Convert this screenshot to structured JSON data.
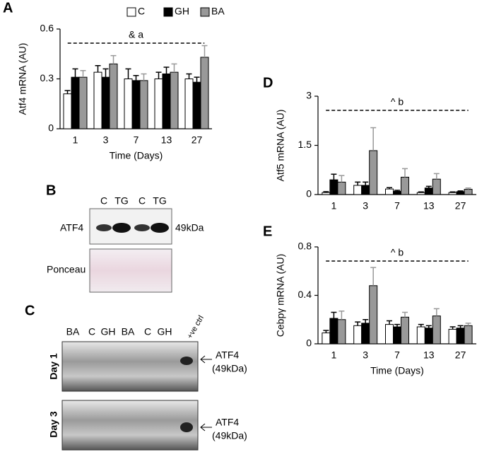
{
  "chart_data": [
    {
      "type": "bar",
      "y_label": "Atf4 mRNA (AU)",
      "x_label": "Time (Days)",
      "annotation": "& a",
      "legend": "top",
      "categories": [
        "1",
        "3",
        "7",
        "13",
        "27"
      ],
      "ylim": [
        0,
        0.6
      ],
      "yticks": [
        0,
        0.3,
        0.6
      ],
      "series": [
        {
          "name": "C",
          "color": "#ffffff",
          "values": [
            0.21,
            0.34,
            0.3,
            0.3,
            0.3
          ],
          "errors": [
            0.02,
            0.04,
            0.06,
            0.04,
            0.03
          ]
        },
        {
          "name": "GH",
          "color": "#000000",
          "values": [
            0.31,
            0.31,
            0.29,
            0.33,
            0.28
          ],
          "errors": [
            0.05,
            0.05,
            0.03,
            0.04,
            0.03
          ]
        },
        {
          "name": "BA",
          "color": "#999999",
          "values": [
            0.31,
            0.39,
            0.29,
            0.34,
            0.43
          ],
          "errors": [
            0.04,
            0.05,
            0.04,
            0.05,
            0.07
          ]
        }
      ]
    },
    {
      "type": "bar",
      "y_label": "Atf5 mRNA (AU)",
      "annotation": "^ b",
      "categories": [
        "1",
        "3",
        "7",
        "13",
        "27"
      ],
      "ylim": [
        0,
        3
      ],
      "yticks": [
        0,
        1.5,
        3
      ],
      "series": [
        {
          "name": "C",
          "color": "#ffffff",
          "values": [
            0.06,
            0.28,
            0.17,
            0.06,
            0.06
          ],
          "errors": [
            0.03,
            0.1,
            0.04,
            0.02,
            0.02
          ]
        },
        {
          "name": "GH",
          "color": "#000000",
          "values": [
            0.45,
            0.28,
            0.1,
            0.2,
            0.09
          ],
          "errors": [
            0.17,
            0.1,
            0.03,
            0.05,
            0.02
          ]
        },
        {
          "name": "BA",
          "color": "#999999",
          "values": [
            0.38,
            1.34,
            0.53,
            0.47,
            0.16
          ],
          "errors": [
            0.2,
            0.7,
            0.26,
            0.17,
            0.04
          ]
        }
      ]
    },
    {
      "type": "bar",
      "y_label": "Cebpγ mRNA (AU)",
      "x_label": "Time (Days)",
      "annotation": "^ b",
      "categories": [
        "1",
        "3",
        "7",
        "13",
        "27"
      ],
      "ylim": [
        0,
        0.8
      ],
      "yticks": [
        0,
        0.4,
        0.8
      ],
      "series": [
        {
          "name": "C",
          "color": "#ffffff",
          "values": [
            0.09,
            0.15,
            0.16,
            0.14,
            0.12
          ],
          "errors": [
            0.02,
            0.03,
            0.03,
            0.02,
            0.02
          ]
        },
        {
          "name": "GH",
          "color": "#000000",
          "values": [
            0.21,
            0.17,
            0.14,
            0.13,
            0.13
          ],
          "errors": [
            0.05,
            0.03,
            0.02,
            0.02,
            0.02
          ]
        },
        {
          "name": "BA",
          "color": "#999999",
          "values": [
            0.2,
            0.48,
            0.22,
            0.23,
            0.15
          ],
          "errors": [
            0.07,
            0.15,
            0.04,
            0.06,
            0.02
          ]
        }
      ]
    }
  ],
  "panel_letters": [
    "A",
    "B",
    "C",
    "D",
    "E"
  ],
  "blot_b": {
    "lanes": [
      "C",
      "TG",
      "C",
      "TG"
    ],
    "band": "ATF4",
    "size": "49kDa",
    "loading": "Ponceau"
  },
  "blot_c": {
    "lanes": [
      "BA",
      "C",
      "GH",
      "BA",
      "C",
      "GH",
      "+ve ctrl"
    ],
    "rows": [
      "Day 1",
      "Day 3"
    ],
    "arrows": [
      {
        "band": "ATF4",
        "size": "(49kDa)"
      },
      {
        "band": "ATF4",
        "size": "(49kDa)"
      }
    ]
  }
}
